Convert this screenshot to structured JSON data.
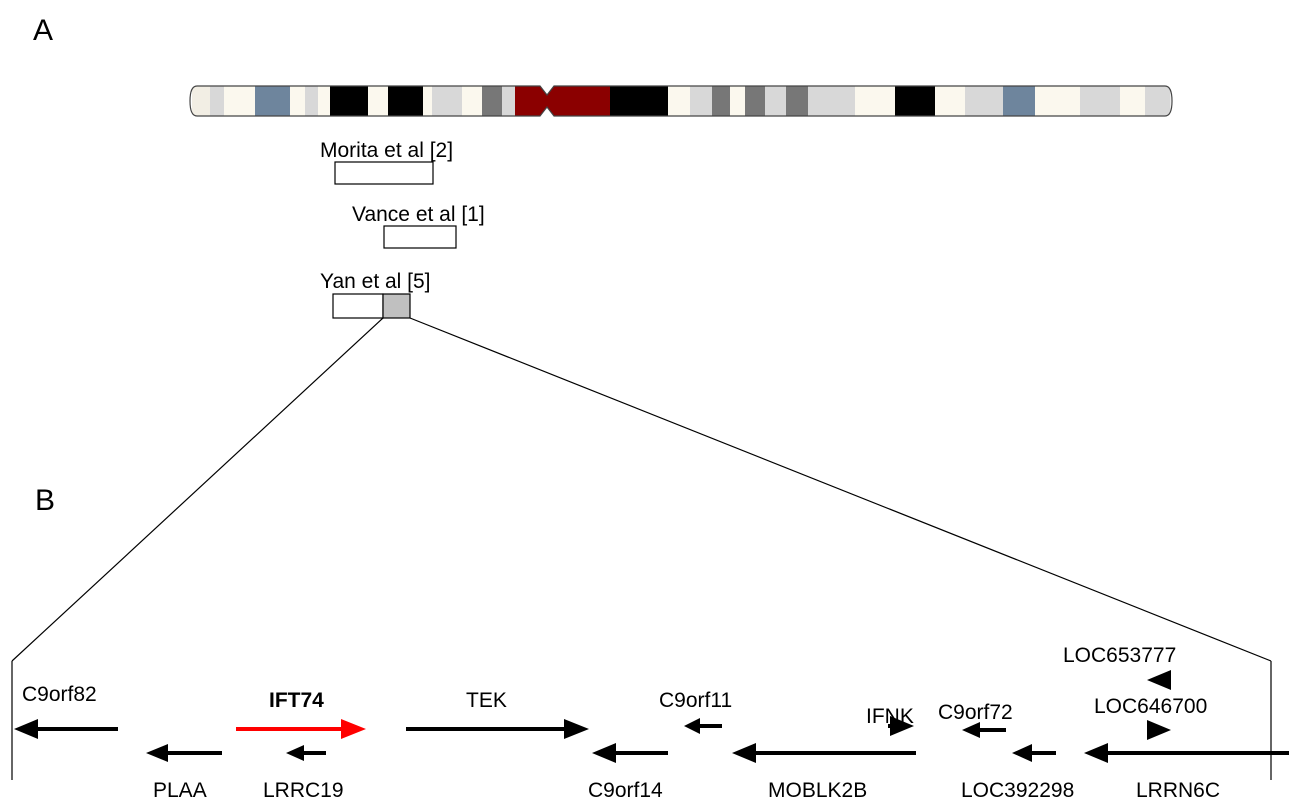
{
  "panels": {
    "a": "A",
    "b": "B"
  },
  "ideogram": {
    "bands": [
      "#f2eee4",
      "#d8d8d8",
      "#fbf8ee",
      "#6e859d",
      "#fbf8ee",
      "#d8d8d8",
      "#fbf8ee",
      "#000000",
      "#fbf8ee",
      "#000000",
      "#fbf8ee",
      "#d8d8d8",
      "#fbf8ee",
      "#777777",
      "#d8d8d8",
      "#8b0000",
      "#8b0000",
      "#000000",
      "#fbf8ee",
      "#d8d8d8",
      "#777777",
      "#fbf8ee",
      "#777777",
      "#d8d8d8",
      "#777777",
      "#d8d8d8",
      "#fbf8ee",
      "#000000",
      "#fbf8ee",
      "#d8d8d8",
      "#6e859d",
      "#fbf8ee",
      "#d8d8d8",
      "#fbf8ee",
      "#d8d8d8",
      "#fbf8ee"
    ],
    "outline_color": "#444444"
  },
  "studies": [
    {
      "label": "Morita et al [2]"
    },
    {
      "label": "Vance et al [1]"
    },
    {
      "label": "Yan et al [5]",
      "highlight_color": "#c0c0c0"
    }
  ],
  "genes_above": [
    {
      "name": "C9orf82",
      "direction": "left"
    },
    {
      "name": "IFT74",
      "direction": "right",
      "color": "#ff0000",
      "bold": true
    },
    {
      "name": "TEK",
      "direction": "right"
    },
    {
      "name": "C9orf11",
      "direction": "left"
    },
    {
      "name": "IFNK",
      "direction": "right"
    },
    {
      "name": "C9orf72",
      "direction": "left"
    },
    {
      "name": "LOC653777",
      "direction": "left"
    },
    {
      "name": "LOC646700",
      "direction": "right"
    }
  ],
  "genes_below": [
    {
      "name": "PLAA",
      "direction": "left"
    },
    {
      "name": "LRRC19",
      "direction": "left"
    },
    {
      "name": "C9orf14",
      "direction": "left"
    },
    {
      "name": "MOBLK2B",
      "direction": "left"
    },
    {
      "name": "LOC392298",
      "direction": "left"
    },
    {
      "name": "LRRN6C",
      "direction": "left"
    }
  ]
}
